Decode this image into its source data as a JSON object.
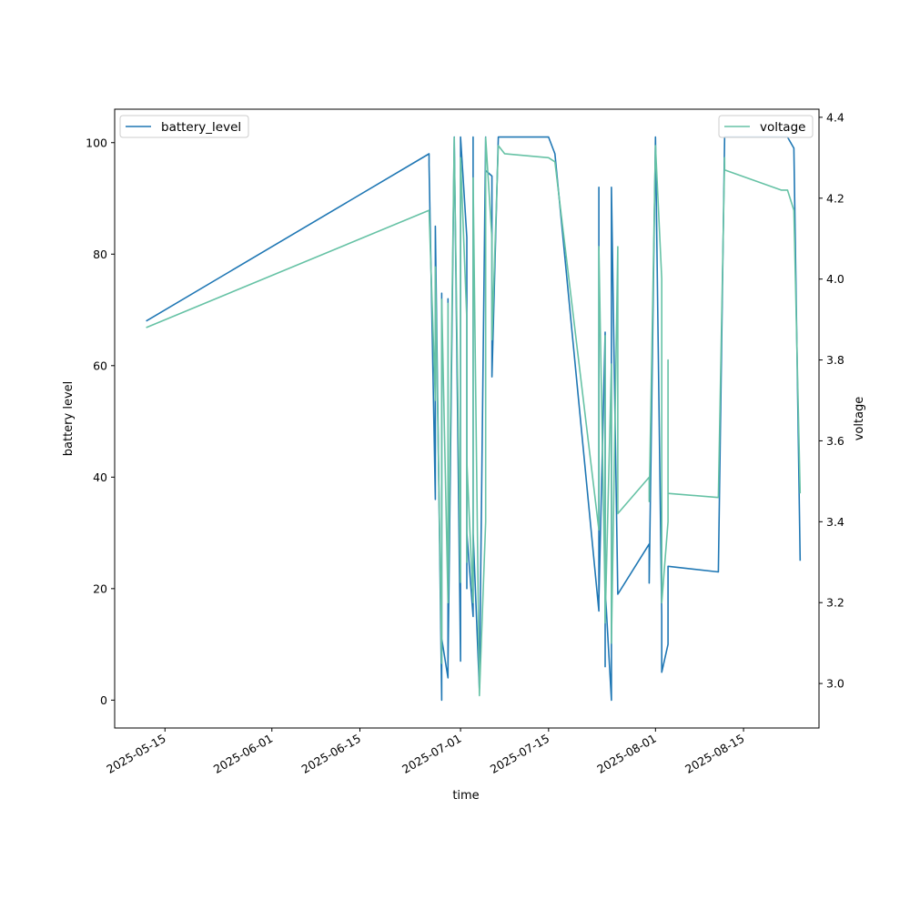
{
  "chart_data": {
    "type": "line",
    "xlabel": "time",
    "ylabel_left": "battery level",
    "ylabel_right": "voltage",
    "x_range": [
      "2025-05-07",
      "2025-08-27"
    ],
    "y_left_range": [
      -5,
      106
    ],
    "y_right_range": [
      2.89,
      4.42
    ],
    "x_ticks": [
      "2025-05-15",
      "2025-06-01",
      "2025-06-15",
      "2025-07-01",
      "2025-07-15",
      "2025-08-01",
      "2025-08-15"
    ],
    "y_left_ticks": [
      0,
      20,
      40,
      60,
      80,
      100
    ],
    "y_right_ticks": [
      "3.0",
      "3.2",
      "3.4",
      "3.6",
      "3.8",
      "4.0",
      "4.2",
      "4.4"
    ],
    "grid": false,
    "legend_left": {
      "placement": "upper-left",
      "label": "battery_level"
    },
    "legend_right": {
      "placement": "upper-right",
      "label": "voltage"
    },
    "colors": {
      "battery_level": "#1f77b4",
      "voltage": "#66c2a5"
    },
    "series": [
      {
        "name": "battery_level",
        "axis": "left",
        "points": [
          [
            "2025-05-12",
            68
          ],
          [
            "2025-06-26",
            98
          ],
          [
            "2025-06-26",
            96
          ],
          [
            "2025-06-27",
            36
          ],
          [
            "2025-06-27",
            85
          ],
          [
            "2025-06-28",
            0
          ],
          [
            "2025-06-28",
            73
          ],
          [
            "2025-06-28",
            11
          ],
          [
            "2025-06-29",
            4
          ],
          [
            "2025-06-29",
            72
          ],
          [
            "2025-06-29",
            6
          ],
          [
            "2025-06-30",
            101
          ],
          [
            "2025-06-30",
            101
          ],
          [
            "2025-07-01",
            7
          ],
          [
            "2025-07-01",
            101
          ],
          [
            "2025-07-02",
            83
          ],
          [
            "2025-07-02",
            20
          ],
          [
            "2025-07-02",
            30
          ],
          [
            "2025-07-03",
            15
          ],
          [
            "2025-07-03",
            101
          ],
          [
            "2025-07-03",
            30
          ],
          [
            "2025-07-04",
            2
          ],
          [
            "2025-07-05",
            101
          ],
          [
            "2025-07-05",
            95
          ],
          [
            "2025-07-06",
            94
          ],
          [
            "2025-07-06",
            58
          ],
          [
            "2025-07-07",
            101
          ],
          [
            "2025-07-15",
            101
          ],
          [
            "2025-07-16",
            98
          ],
          [
            "2025-07-23",
            16
          ],
          [
            "2025-07-23",
            92
          ],
          [
            "2025-07-23",
            18
          ],
          [
            "2025-07-24",
            66
          ],
          [
            "2025-07-24",
            6
          ],
          [
            "2025-07-24",
            20
          ],
          [
            "2025-07-25",
            0
          ],
          [
            "2025-07-25",
            92
          ],
          [
            "2025-07-26",
            19
          ],
          [
            "2025-07-31",
            28
          ],
          [
            "2025-07-31",
            21
          ],
          [
            "2025-08-01",
            101
          ],
          [
            "2025-08-01",
            101
          ],
          [
            "2025-08-02",
            15
          ],
          [
            "2025-08-02",
            5
          ],
          [
            "2025-08-03",
            10
          ],
          [
            "2025-08-03",
            24
          ],
          [
            "2025-08-11",
            23
          ],
          [
            "2025-08-12",
            101
          ],
          [
            "2025-08-22",
            101
          ],
          [
            "2025-08-23",
            99
          ],
          [
            "2025-08-24",
            25
          ]
        ]
      },
      {
        "name": "voltage",
        "axis": "right",
        "points": [
          [
            "2025-05-12",
            3.88
          ],
          [
            "2025-06-26",
            4.17
          ],
          [
            "2025-06-27",
            3.7
          ],
          [
            "2025-06-27",
            4.03
          ],
          [
            "2025-06-28",
            3.05
          ],
          [
            "2025-06-28",
            3.95
          ],
          [
            "2025-06-29",
            3.2
          ],
          [
            "2025-06-29",
            3.94
          ],
          [
            "2025-06-29",
            3.2
          ],
          [
            "2025-06-30",
            4.35
          ],
          [
            "2025-06-30",
            4.33
          ],
          [
            "2025-07-01",
            3.25
          ],
          [
            "2025-07-01",
            4.3
          ],
          [
            "2025-07-02",
            3.9
          ],
          [
            "2025-07-02",
            3.3
          ],
          [
            "2025-07-02",
            3.55
          ],
          [
            "2025-07-03",
            3.2
          ],
          [
            "2025-07-03",
            4.25
          ],
          [
            "2025-07-04",
            2.97
          ],
          [
            "2025-07-05",
            3.4
          ],
          [
            "2025-07-05",
            4.35
          ],
          [
            "2025-07-06",
            4.1
          ],
          [
            "2025-07-06",
            3.85
          ],
          [
            "2025-07-07",
            4.33
          ],
          [
            "2025-07-08",
            4.31
          ],
          [
            "2025-07-15",
            4.3
          ],
          [
            "2025-07-16",
            4.29
          ],
          [
            "2025-07-23",
            3.38
          ],
          [
            "2025-07-23",
            4.08
          ],
          [
            "2025-07-24",
            3.2
          ],
          [
            "2025-07-24",
            3.86
          ],
          [
            "2025-07-24",
            3.15
          ],
          [
            "2025-07-25",
            3.79
          ],
          [
            "2025-07-25",
            3.1
          ],
          [
            "2025-07-26",
            4.08
          ],
          [
            "2025-07-26",
            3.42
          ],
          [
            "2025-07-31",
            3.51
          ],
          [
            "2025-07-31",
            3.45
          ],
          [
            "2025-08-01",
            4.33
          ],
          [
            "2025-08-02",
            4.0
          ],
          [
            "2025-08-02",
            3.2
          ],
          [
            "2025-08-03",
            3.4
          ],
          [
            "2025-08-03",
            3.8
          ],
          [
            "2025-08-03",
            3.47
          ],
          [
            "2025-08-11",
            3.46
          ],
          [
            "2025-08-12",
            4.3
          ],
          [
            "2025-08-12",
            4.27
          ],
          [
            "2025-08-21",
            4.22
          ],
          [
            "2025-08-22",
            4.22
          ],
          [
            "2025-08-23",
            4.17
          ],
          [
            "2025-08-24",
            3.47
          ]
        ]
      }
    ]
  }
}
